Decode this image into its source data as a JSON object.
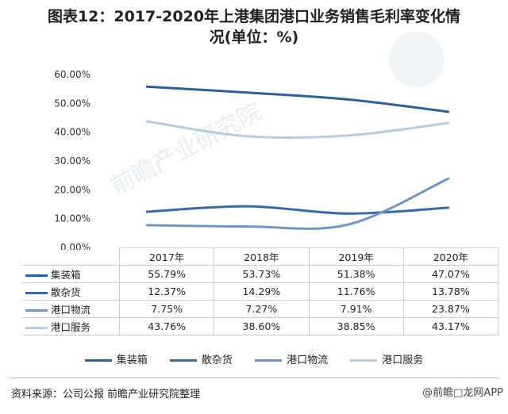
{
  "title": {
    "line1": "图表12：2017-2020年上港集团港口业务销售毛利率变化情",
    "line2": "况(单位：%)"
  },
  "watermark_text": "前瞻产业研究院",
  "source": "资料来源：公司公报 前瞻产业研究院整理",
  "brand": "@前瞻□龙网APP",
  "chart_data": {
    "type": "line",
    "categories": [
      "2017年",
      "2018年",
      "2019年",
      "2020年"
    ],
    "ylim": [
      0,
      60
    ],
    "yticks": [
      "0.00%",
      "10.00%",
      "20.00%",
      "30.00%",
      "40.00%",
      "50.00%",
      "60.00%"
    ],
    "grid": false,
    "legend_position": "bottom",
    "series": [
      {
        "name": "集装箱",
        "values": [
          55.79,
          53.73,
          51.38,
          47.07
        ],
        "labels": [
          "55.79%",
          "53.73%",
          "51.38%",
          "47.07%"
        ],
        "color": "#2e5f95"
      },
      {
        "name": "散杂货",
        "values": [
          12.37,
          14.29,
          11.76,
          13.78
        ],
        "labels": [
          "12.37%",
          "14.29%",
          "11.76%",
          "13.78%"
        ],
        "color": "#3a6aa6"
      },
      {
        "name": "港口物流",
        "values": [
          7.75,
          7.27,
          7.91,
          23.87
        ],
        "labels": [
          "7.75%",
          "7.27%",
          "7.91%",
          "23.87%"
        ],
        "color": "#7097c4"
      },
      {
        "name": "港口服务",
        "values": [
          43.76,
          38.6,
          38.85,
          43.17
        ],
        "labels": [
          "43.76%",
          "38.60%",
          "38.85%",
          "43.17%"
        ],
        "color": "#b7cbe2"
      }
    ]
  }
}
